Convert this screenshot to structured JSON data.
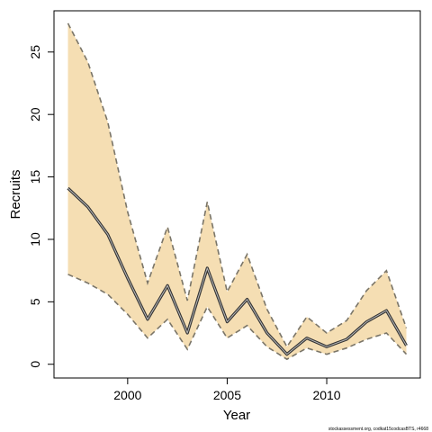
{
  "chart_data": {
    "type": "line",
    "title": "",
    "xlabel": "Year",
    "ylabel": "Recruits",
    "xlim": [
      1996.3,
      2014.7
    ],
    "ylim": [
      -1.1,
      28.3
    ],
    "xticks": [
      2000,
      2005,
      2010
    ],
    "yticks": [
      0,
      5,
      10,
      15,
      20,
      25
    ],
    "grid": false,
    "x": [
      1997,
      1998,
      1999,
      2000,
      2001,
      2002,
      2003,
      2004,
      2005,
      2006,
      2007,
      2008,
      2009,
      2010,
      2011,
      2012,
      2013,
      2014
    ],
    "series": [
      {
        "role": "estimate",
        "values": [
          14.1,
          12.6,
          10.4,
          6.9,
          3.6,
          6.3,
          2.5,
          7.7,
          3.4,
          5.2,
          2.5,
          0.8,
          2.1,
          1.4,
          2.0,
          3.4,
          4.3,
          1.5
        ]
      },
      {
        "role": "upper",
        "values": [
          27.3,
          24.2,
          19.4,
          12.2,
          6.5,
          11.0,
          5.1,
          13.0,
          5.8,
          8.8,
          4.4,
          1.4,
          3.8,
          2.5,
          3.5,
          5.9,
          7.5,
          2.9
        ]
      },
      {
        "role": "lower",
        "values": [
          7.2,
          6.5,
          5.6,
          4.0,
          2.1,
          3.6,
          1.2,
          4.6,
          2.1,
          3.1,
          1.4,
          0.4,
          1.3,
          0.8,
          1.3,
          2.0,
          2.5,
          0.8
        ]
      }
    ]
  },
  "style": {
    "band_fill": "#f5deb3",
    "bound_stroke": "#7a7568",
    "line_outer": "#333333",
    "line_inner": "#b8b8b8"
  },
  "credit": "stockassessment.org, codkat15codcasBTS, r4668"
}
